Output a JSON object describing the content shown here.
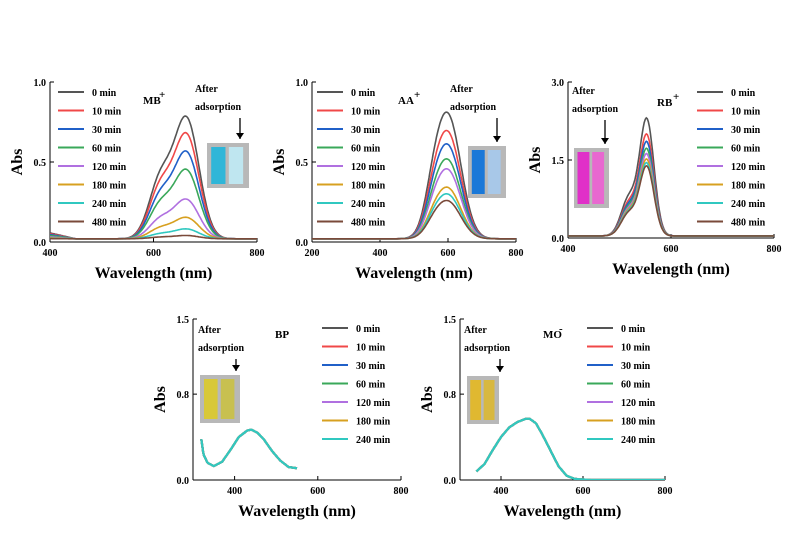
{
  "chart_data": [
    {
      "type": "line",
      "label": "MB",
      "label_sup": "+",
      "xlabel": "Wavelength (nm)",
      "ylabel": "Abs",
      "xlim": [
        400,
        800
      ],
      "ylim": [
        0,
        1.0
      ],
      "x_ticks": [
        "400",
        "600",
        "800"
      ],
      "y_ticks": [
        "0.0",
        "0.5",
        "1.0"
      ],
      "annotation": [
        "After",
        "adsorption"
      ],
      "inset_colors": [
        "#2fb6d8",
        "#bfe6f0"
      ],
      "legend_position": "top-left",
      "peak_nm": 664,
      "shoulder_nm": 613,
      "series": [
        {
          "name": "0 min",
          "color": "#555555",
          "peak": 0.74
        },
        {
          "name": "10 min",
          "color": "#f04848",
          "peak": 0.64
        },
        {
          "name": "30 min",
          "color": "#2060c8",
          "peak": 0.53
        },
        {
          "name": "60 min",
          "color": "#3aa85a",
          "peak": 0.42
        },
        {
          "name": "120 min",
          "color": "#b070e0",
          "peak": 0.24
        },
        {
          "name": "180 min",
          "color": "#d7a020",
          "peak": 0.13
        },
        {
          "name": "240 min",
          "color": "#30c8c0",
          "peak": 0.06
        },
        {
          "name": "480 min",
          "color": "#7a4a3a",
          "peak": 0.02
        }
      ]
    },
    {
      "type": "line",
      "label": "AA",
      "label_sup": "+",
      "xlabel": "Wavelength (nm)",
      "ylabel": "Abs",
      "xlim": [
        200,
        800
      ],
      "ylim": [
        0,
        1.0
      ],
      "x_ticks": [
        "200",
        "400",
        "600",
        "800"
      ],
      "y_ticks": [
        "0.0",
        "0.5",
        "1.0"
      ],
      "annotation": [
        "After",
        "adsorption"
      ],
      "inset_colors": [
        "#1a78d8",
        "#a8c8e8"
      ],
      "legend_position": "top-left",
      "peak_nm": 600,
      "series": [
        {
          "name": "0 min",
          "color": "#555555",
          "peak": 0.76
        },
        {
          "name": "10 min",
          "color": "#f04848",
          "peak": 0.65
        },
        {
          "name": "30 min",
          "color": "#2060c8",
          "peak": 0.57
        },
        {
          "name": "60 min",
          "color": "#3aa85a",
          "peak": 0.48
        },
        {
          "name": "120 min",
          "color": "#b070e0",
          "peak": 0.42
        },
        {
          "name": "180 min",
          "color": "#d7a020",
          "peak": 0.31
        },
        {
          "name": "240 min",
          "color": "#30c8c0",
          "peak": 0.27
        },
        {
          "name": "480 min",
          "color": "#7a4a3a",
          "peak": 0.23
        }
      ]
    },
    {
      "type": "line",
      "label": "RB",
      "label_sup": "+",
      "xlabel": "Wavelength (nm)",
      "ylabel": "Abs",
      "xlim": [
        400,
        800
      ],
      "ylim": [
        0,
        3.0
      ],
      "x_ticks": [
        "400",
        "600",
        "800"
      ],
      "y_ticks": [
        "0.0",
        "1.5",
        "3.0"
      ],
      "annotation": [
        "After",
        "adsorption"
      ],
      "inset_colors": [
        "#e030c8",
        "#e868d0"
      ],
      "legend_position": "top-right",
      "peak_nm": 553,
      "shoulder_nm": 517,
      "series": [
        {
          "name": "0 min",
          "color": "#555555",
          "peak": 2.22
        },
        {
          "name": "10 min",
          "color": "#f04848",
          "peak": 1.92
        },
        {
          "name": "30 min",
          "color": "#2060c8",
          "peak": 1.78
        },
        {
          "name": "60 min",
          "color": "#3aa85a",
          "peak": 1.65
        },
        {
          "name": "120 min",
          "color": "#b070e0",
          "peak": 1.55
        },
        {
          "name": "180 min",
          "color": "#d7a020",
          "peak": 1.45
        },
        {
          "name": "240 min",
          "color": "#30c8c0",
          "peak": 1.38
        },
        {
          "name": "480 min",
          "color": "#7a4a3a",
          "peak": 1.32
        }
      ]
    },
    {
      "type": "line",
      "label": "BP",
      "label_sup": "",
      "xlabel": "Wavelength (nm)",
      "ylabel": "Abs",
      "xlim": [
        300,
        800
      ],
      "ylim": [
        0,
        1.5
      ],
      "x_ticks": [
        "400",
        "600",
        "800"
      ],
      "y_ticks": [
        "0.0",
        "0.8",
        "1.5"
      ],
      "annotation": [
        "After",
        "adsorption"
      ],
      "inset_colors": [
        "#d8c838",
        "#c8c050"
      ],
      "legend_position": "top-right",
      "curve": [
        [
          320,
          0.38
        ],
        [
          325,
          0.24
        ],
        [
          335,
          0.16
        ],
        [
          350,
          0.13
        ],
        [
          370,
          0.17
        ],
        [
          390,
          0.28
        ],
        [
          410,
          0.4
        ],
        [
          430,
          0.46
        ],
        [
          440,
          0.47
        ],
        [
          455,
          0.44
        ],
        [
          470,
          0.38
        ],
        [
          490,
          0.27
        ],
        [
          510,
          0.18
        ],
        [
          530,
          0.12
        ],
        [
          550,
          0.11
        ]
      ],
      "series": [
        {
          "name": "0 min",
          "color": "#555555"
        },
        {
          "name": "10 min",
          "color": "#f04848"
        },
        {
          "name": "30 min",
          "color": "#2060c8"
        },
        {
          "name": "60 min",
          "color": "#3aa85a"
        },
        {
          "name": "120 min",
          "color": "#b070e0"
        },
        {
          "name": "180 min",
          "color": "#d7a020"
        },
        {
          "name": "240 min",
          "color": "#30c8c0"
        }
      ]
    },
    {
      "type": "line",
      "label": "MO",
      "label_sup": "-",
      "xlabel": "Wavelength (nm)",
      "ylabel": "Abs",
      "xlim": [
        300,
        800
      ],
      "ylim": [
        0,
        1.5
      ],
      "x_ticks": [
        "400",
        "600",
        "800"
      ],
      "y_ticks": [
        "0.0",
        "0.8",
        "1.5"
      ],
      "annotation": [
        "After",
        "adsorption"
      ],
      "inset_colors": [
        "#e0b830",
        "#d8b840"
      ],
      "legend_position": "top-right",
      "curve": [
        [
          340,
          0.08
        ],
        [
          360,
          0.15
        ],
        [
          380,
          0.28
        ],
        [
          400,
          0.4
        ],
        [
          420,
          0.49
        ],
        [
          440,
          0.54
        ],
        [
          460,
          0.57
        ],
        [
          470,
          0.57
        ],
        [
          485,
          0.53
        ],
        [
          500,
          0.43
        ],
        [
          520,
          0.28
        ],
        [
          540,
          0.13
        ],
        [
          560,
          0.04
        ],
        [
          580,
          0.01
        ],
        [
          620,
          0.0
        ],
        [
          700,
          0.0
        ],
        [
          800,
          0.0
        ]
      ],
      "series": [
        {
          "name": "0 min",
          "color": "#555555"
        },
        {
          "name": "10 min",
          "color": "#f04848"
        },
        {
          "name": "30 min",
          "color": "#2060c8"
        },
        {
          "name": "60 min",
          "color": "#3aa85a"
        },
        {
          "name": "120 min",
          "color": "#b070e0"
        },
        {
          "name": "180 min",
          "color": "#d7a020"
        },
        {
          "name": "240 min",
          "color": "#30c8c0"
        }
      ]
    }
  ]
}
